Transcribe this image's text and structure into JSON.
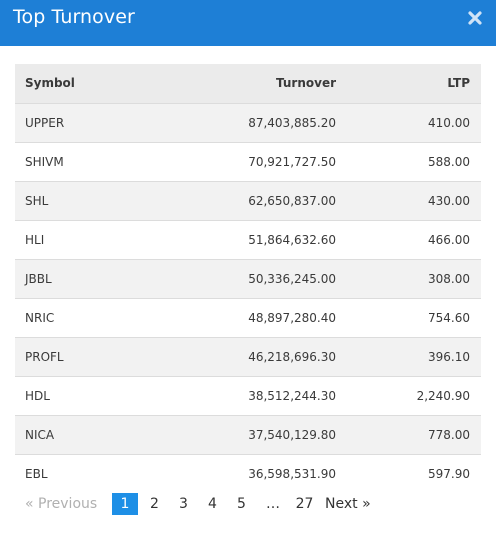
{
  "modal": {
    "title": "Top Turnover",
    "close_icon": "close-icon"
  },
  "table": {
    "headers": {
      "symbol": "Symbol",
      "turnover": "Turnover",
      "ltp": "LTP"
    },
    "rows": [
      {
        "symbol": "UPPER",
        "turnover": "87,403,885.20",
        "ltp": "410.00"
      },
      {
        "symbol": "SHIVM",
        "turnover": "70,921,727.50",
        "ltp": "588.00"
      },
      {
        "symbol": "SHL",
        "turnover": "62,650,837.00",
        "ltp": "430.00"
      },
      {
        "symbol": "HLI",
        "turnover": "51,864,632.60",
        "ltp": "466.00"
      },
      {
        "symbol": "JBBL",
        "turnover": "50,336,245.00",
        "ltp": "308.00"
      },
      {
        "symbol": "NRIC",
        "turnover": "48,897,280.40",
        "ltp": "754.60"
      },
      {
        "symbol": "PROFL",
        "turnover": "46,218,696.30",
        "ltp": "396.10"
      },
      {
        "symbol": "HDL",
        "turnover": "38,512,244.30",
        "ltp": "2,240.90"
      },
      {
        "symbol": "NICA",
        "turnover": "37,540,129.80",
        "ltp": "778.00"
      },
      {
        "symbol": "EBL",
        "turnover": "36,598,531.90",
        "ltp": "597.90"
      }
    ]
  },
  "pagination": {
    "previous": "«  Previous",
    "pages": [
      "1",
      "2",
      "3",
      "4",
      "5"
    ],
    "active_page": "1",
    "ellipsis": "…",
    "last_page": "27",
    "next": "Next  »"
  },
  "colors": {
    "header_bg": "#1e7fd6",
    "active_page_bg": "#1e8fe6"
  }
}
